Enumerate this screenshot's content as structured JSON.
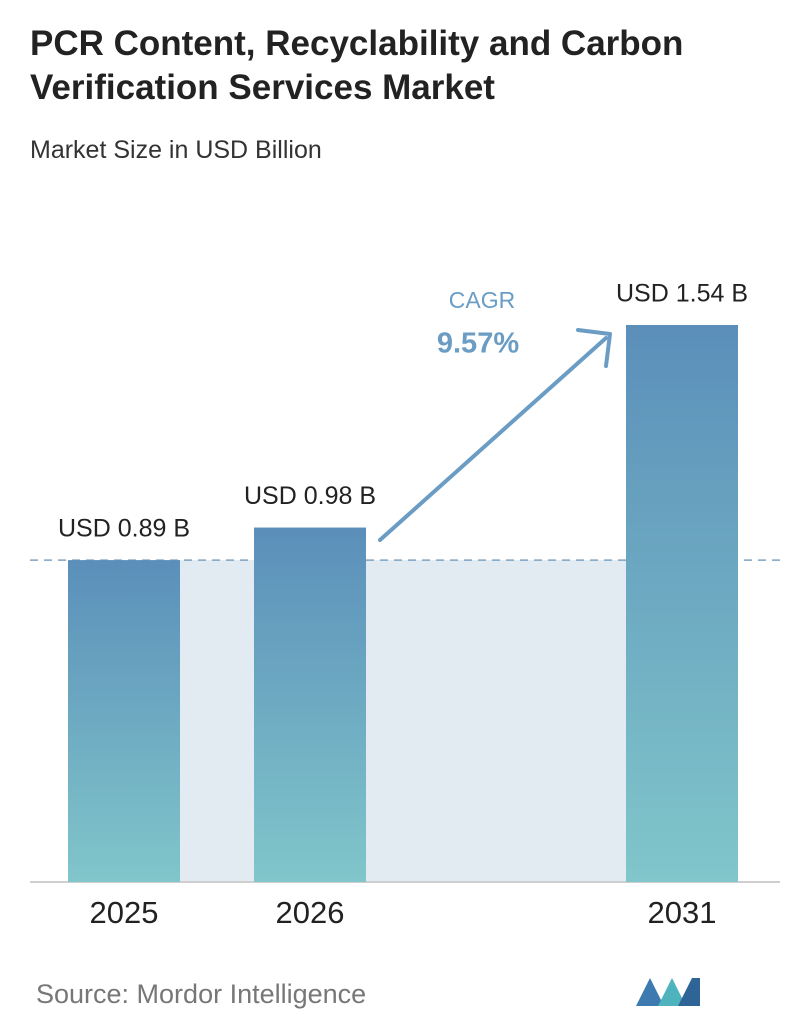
{
  "chart_data": {
    "type": "bar",
    "title": "PCR Content, Recyclability and Carbon Verification Services Market",
    "subtitle": "Market Size in USD Billion",
    "categories": [
      "2025",
      "2026",
      "2031"
    ],
    "values": [
      0.89,
      0.98,
      1.54
    ],
    "value_labels": [
      "USD 0.89 B",
      "USD 0.98 B",
      "USD 1.54 B"
    ],
    "color": "#5b8fba",
    "annotations": {
      "cagr_label": "CAGR",
      "cagr_value": "9.57%"
    },
    "source": "Source: Mordor Intelligence"
  }
}
